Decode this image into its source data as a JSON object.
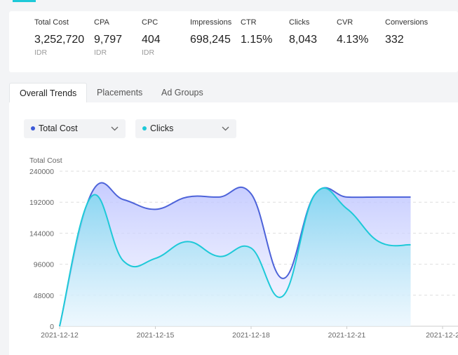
{
  "metrics": [
    {
      "label": "Total Cost",
      "value": "3,252,720",
      "unit": "IDR"
    },
    {
      "label": "CPA",
      "value": "9,797",
      "unit": "IDR"
    },
    {
      "label": "CPC",
      "value": "404",
      "unit": "IDR"
    },
    {
      "label": "Impressions",
      "value": "698,245",
      "unit": ""
    },
    {
      "label": "CTR",
      "value": "1.15%",
      "unit": ""
    },
    {
      "label": "Clicks",
      "value": "8,043",
      "unit": ""
    },
    {
      "label": "CVR",
      "value": "4.13%",
      "unit": ""
    },
    {
      "label": "Conversions",
      "value": "332",
      "unit": ""
    }
  ],
  "tabs": [
    {
      "label": "Overall Trends",
      "active": true
    },
    {
      "label": "Placements",
      "active": false
    },
    {
      "label": "Ad Groups",
      "active": false
    }
  ],
  "selectors": [
    {
      "label": "Total Cost",
      "color": "#3d5ad8"
    },
    {
      "label": "Clicks",
      "color": "#1ec9d8"
    }
  ],
  "chart_data": {
    "type": "area",
    "ylabel": "Total Cost",
    "yticks": [
      "240000",
      "192000",
      "144000",
      "96000",
      "48000",
      "0"
    ],
    "ylim": [
      0,
      240000
    ],
    "grid": true,
    "x": [
      "2021-12-12",
      "2021-12-13",
      "2021-12-14",
      "2021-12-15",
      "2021-12-16",
      "2021-12-17",
      "2021-12-18",
      "2021-12-19",
      "2021-12-20",
      "2021-12-21",
      "2021-12-22",
      "2021-12-23"
    ],
    "xtick_labels": [
      "2021-12-12",
      "2021-12-15",
      "2021-12-18",
      "2021-12-21",
      "2021-12-2"
    ],
    "series": [
      {
        "name": "Total Cost",
        "color": "#4d63d9",
        "values": [
          0,
          206000,
          196000,
          181000,
          200000,
          200000,
          205000,
          74000,
          204000,
          200000,
          200000,
          200000
        ]
      },
      {
        "name": "Clicks",
        "color": "#1ec9d8",
        "values": [
          0,
          201000,
          101000,
          105000,
          131000,
          108000,
          121000,
          47000,
          204000,
          182000,
          131000,
          126000
        ]
      }
    ]
  }
}
